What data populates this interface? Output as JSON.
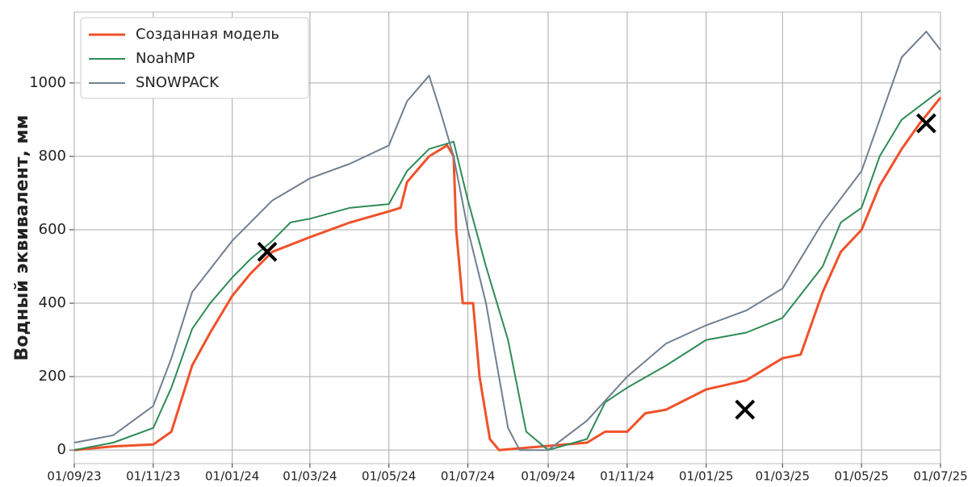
{
  "chart_data": {
    "type": "line",
    "ylabel": "Водный эквивалент, мм",
    "xlim": [
      "01/09/23",
      "01/07/25"
    ],
    "xticks": [
      "01/09/23",
      "01/11/23",
      "01/01/24",
      "01/03/24",
      "01/05/24",
      "01/07/24",
      "01/09/24",
      "01/11/24",
      "01/01/25",
      "01/03/25",
      "01/05/25",
      "01/07/25"
    ],
    "ylim": [
      -37,
      1193
    ],
    "yticks": [
      0,
      200,
      400,
      600,
      800,
      1000
    ],
    "grid": true,
    "legend": "upper left",
    "series": [
      {
        "name": "Созданная модель",
        "color": "#f0512a",
        "x": [
          "01/09/23",
          "01/10/23",
          "01/11/23",
          "15/11/23",
          "01/12/23",
          "15/12/23",
          "01/01/24",
          "15/01/24",
          "01/02/24",
          "01/03/24",
          "01/04/24",
          "01/05/24",
          "10/05/24",
          "15/05/24",
          "01/06/24",
          "15/06/24",
          "20/06/24",
          "22/06/24",
          "27/06/24",
          "05/07/24",
          "10/07/24",
          "18/07/24",
          "25/07/24",
          "01/10/24",
          "15/10/24",
          "01/11/24",
          "15/11/24",
          "01/12/24",
          "01/01/25",
          "01/02/25",
          "01/03/25",
          "15/03/25",
          "01/04/25",
          "15/04/25",
          "01/05/25",
          "15/05/25",
          "01/06/25",
          "15/06/25",
          "01/07/25"
        ],
        "values": [
          0,
          10,
          15,
          50,
          230,
          320,
          420,
          480,
          540,
          580,
          620,
          650,
          660,
          730,
          800,
          830,
          800,
          600,
          400,
          400,
          200,
          30,
          0,
          20,
          50,
          50,
          100,
          110,
          165,
          190,
          250,
          260,
          430,
          540,
          600,
          720,
          820,
          890,
          960
        ]
      },
      {
        "name": "NoahMP",
        "color": "#2e8b57",
        "x": [
          "01/09/23",
          "01/10/23",
          "01/11/23",
          "15/11/23",
          "01/12/23",
          "15/12/23",
          "01/01/24",
          "15/01/24",
          "01/02/24",
          "15/02/24",
          "01/03/24",
          "01/04/24",
          "01/05/24",
          "15/05/24",
          "01/06/24",
          "20/06/24",
          "01/07/24",
          "15/07/24",
          "01/08/24",
          "15/08/24",
          "01/09/24",
          "01/10/24",
          "15/10/24",
          "01/11/24",
          "01/12/24",
          "01/01/25",
          "01/02/25",
          "01/03/25",
          "01/04/25",
          "15/04/25",
          "01/05/25",
          "15/05/25",
          "01/06/25",
          "01/07/25"
        ],
        "values": [
          0,
          20,
          60,
          170,
          330,
          400,
          470,
          520,
          570,
          620,
          630,
          660,
          670,
          760,
          820,
          840,
          680,
          500,
          300,
          50,
          0,
          30,
          130,
          170,
          230,
          300,
          320,
          360,
          500,
          620,
          660,
          800,
          900,
          980
        ]
      },
      {
        "name": "SNOWPACK",
        "color": "#708090",
        "x": [
          "01/09/23",
          "01/10/23",
          "01/11/23",
          "15/11/23",
          "01/12/23",
          "01/01/24",
          "01/02/24",
          "01/03/24",
          "01/04/24",
          "01/05/24",
          "15/05/24",
          "01/06/24",
          "10/06/24",
          "20/06/24",
          "01/07/24",
          "15/07/24",
          "01/08/24",
          "10/08/24",
          "01/09/24",
          "01/10/24",
          "01/11/24",
          "01/12/24",
          "01/01/25",
          "01/02/25",
          "01/03/25",
          "01/04/25",
          "01/05/25",
          "01/06/25",
          "20/06/25",
          "01/07/25"
        ],
        "values": [
          20,
          40,
          120,
          250,
          430,
          570,
          680,
          740,
          780,
          830,
          950,
          1020,
          920,
          800,
          600,
          400,
          60,
          0,
          0,
          80,
          200,
          290,
          340,
          380,
          440,
          620,
          760,
          1070,
          1140,
          1090
        ]
      }
    ],
    "observations": {
      "color": "#000000",
      "x": [
        "28/01/24",
        "31/01/25",
        "20/06/25"
      ],
      "values": [
        540,
        110,
        890
      ]
    }
  }
}
